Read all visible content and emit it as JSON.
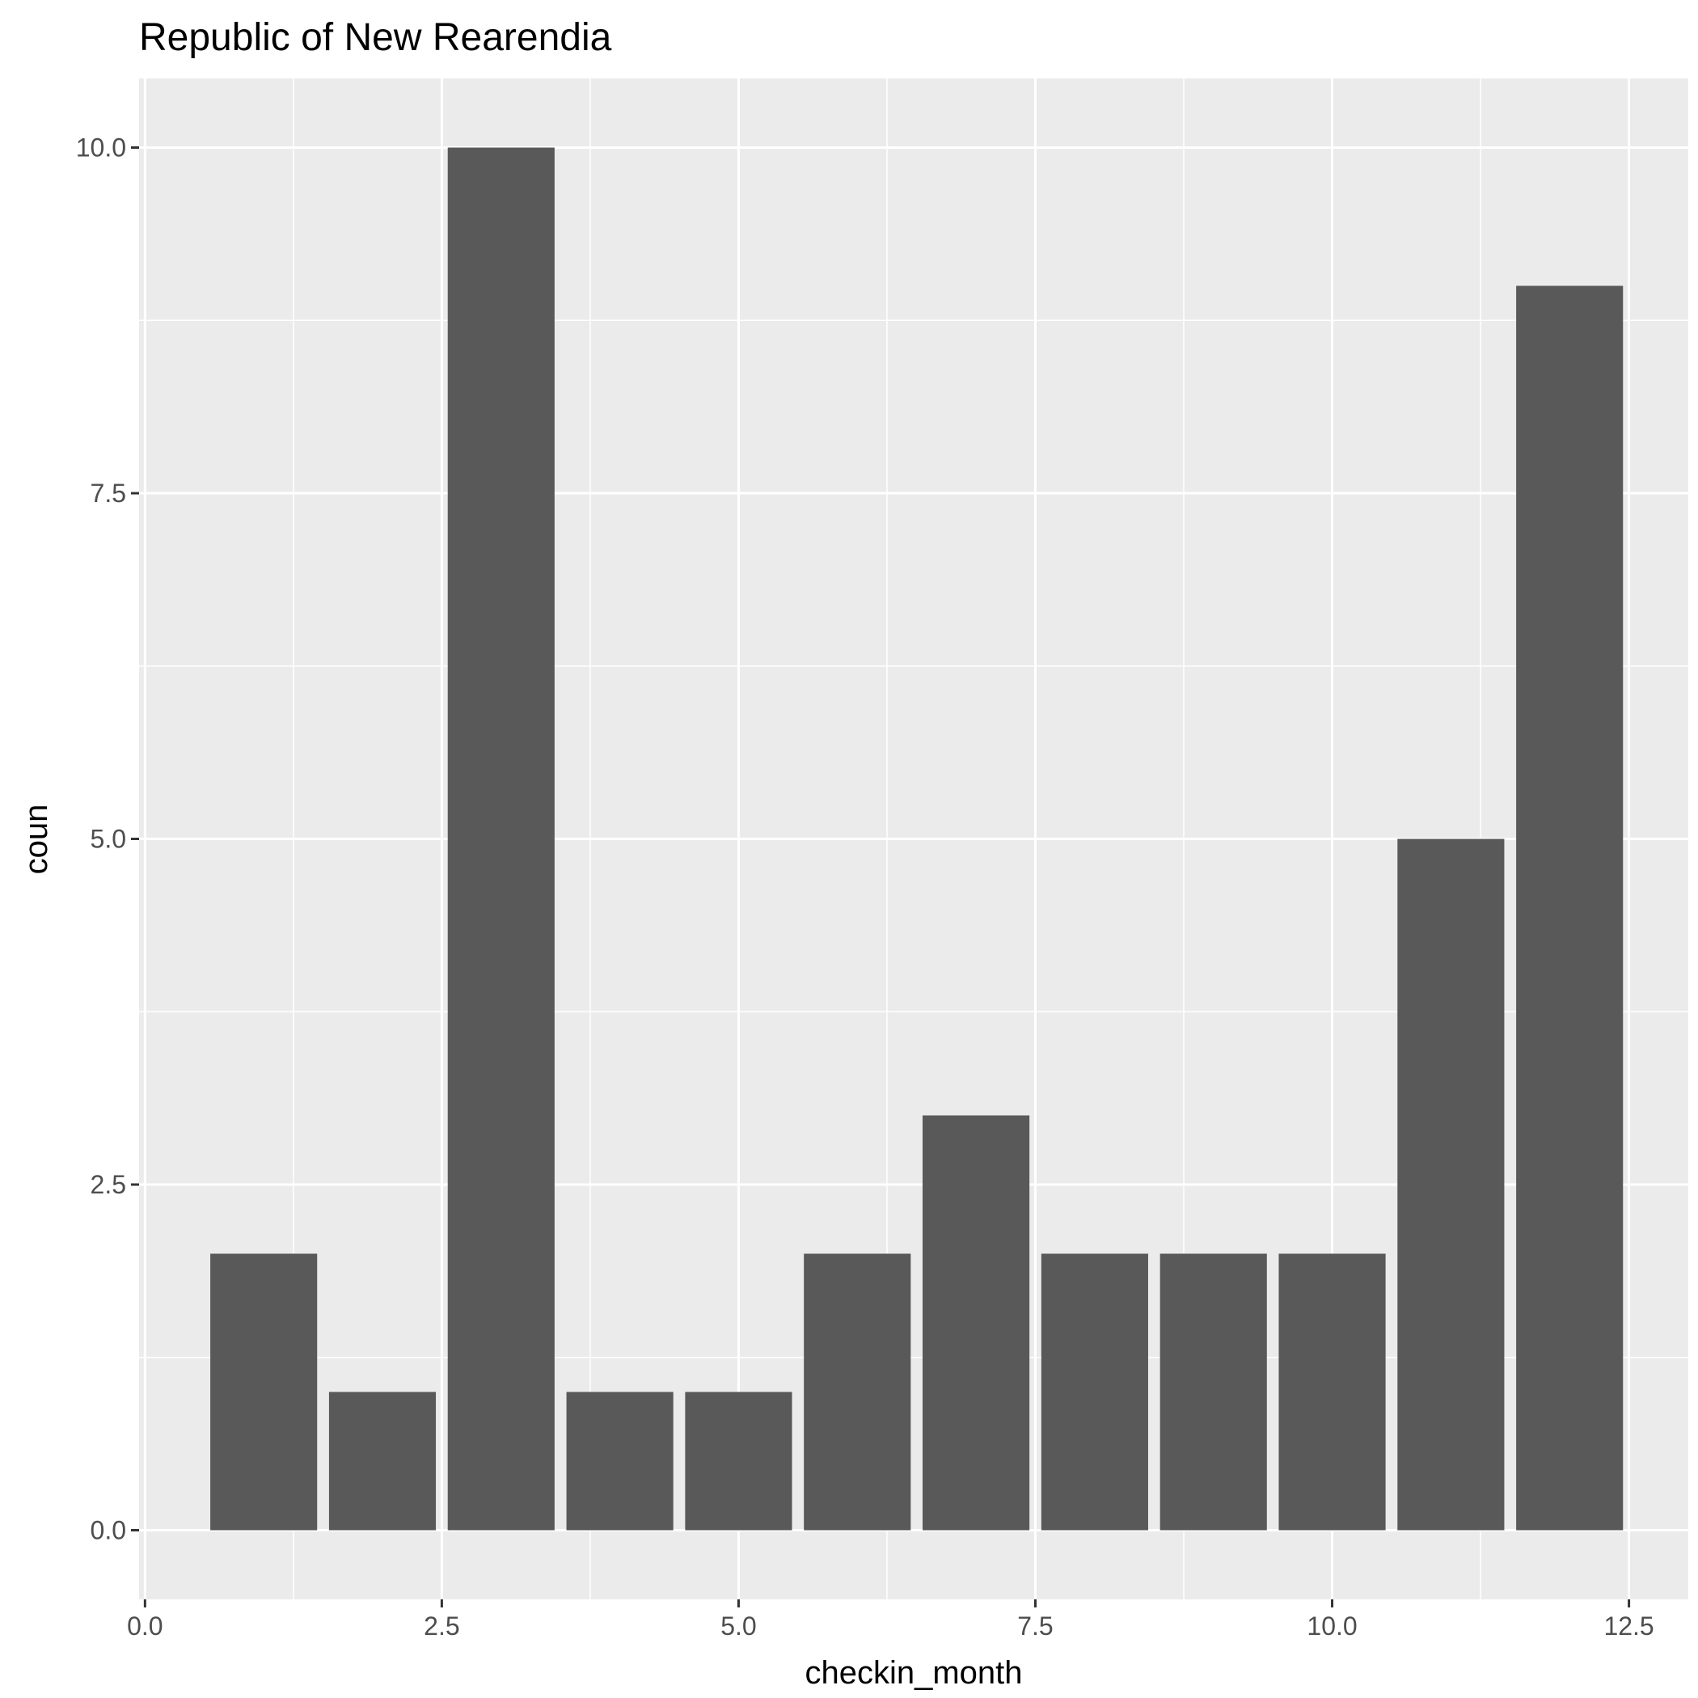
{
  "chart_data": {
    "type": "bar",
    "title": "Republic of New Rearendia",
    "xlabel": "checkin_month",
    "ylabel": "coun",
    "x": [
      1,
      2,
      3,
      4,
      5,
      6,
      7,
      8,
      9,
      10,
      11,
      12
    ],
    "values": [
      2,
      1,
      10,
      1,
      1,
      2,
      3,
      2,
      2,
      2,
      5,
      9
    ],
    "xlim": [
      -0.05,
      13.0
    ],
    "ylim": [
      -0.5,
      10.5
    ],
    "x_ticks": [
      0,
      2.5,
      5,
      7.5,
      10,
      12.5
    ],
    "x_tick_labels": [
      "0.0",
      "2.5",
      "5.0",
      "7.5",
      "10.0",
      "12.5"
    ],
    "y_ticks": [
      0,
      2.5,
      5,
      7.5,
      10
    ],
    "y_tick_labels": [
      "0.0",
      "2.5",
      "5.0",
      "7.5",
      "10.0"
    ],
    "grid": true,
    "legend": "none",
    "colors": {
      "panel": "#ebebeb",
      "bar": "#595959",
      "grid": "#ffffff",
      "tick": "#333333"
    }
  }
}
